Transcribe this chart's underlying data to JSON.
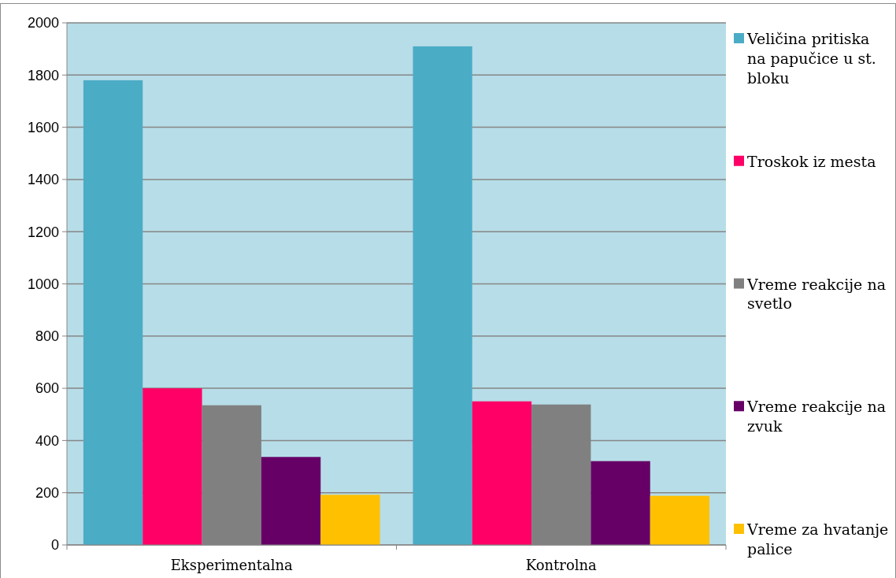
{
  "chart_data": {
    "type": "bar",
    "categories": [
      "Eksperimentalna",
      "Kontrolna"
    ],
    "series": [
      {
        "name": "Veličina pritiska na papučice u st. bloku",
        "color": "#4bacc6",
        "values": [
          1780,
          1910
        ]
      },
      {
        "name": "Troskok iz mesta",
        "color": "#ff0066",
        "values": [
          600,
          550
        ]
      },
      {
        "name": "Vreme reakcije na svetlo",
        "color": "#808080",
        "values": [
          535,
          538
        ]
      },
      {
        "name": "Vreme reakcije na zvuk",
        "color": "#660066",
        "values": [
          337,
          321
        ]
      },
      {
        "name": "Vreme za hvatanje palice",
        "color": "#ffc000",
        "values": [
          192,
          188
        ]
      }
    ],
    "ylim": [
      0,
      2000
    ],
    "yticks": [
      0,
      200,
      400,
      600,
      800,
      1000,
      1200,
      1400,
      1600,
      1800,
      2000
    ],
    "grid": "y",
    "legend": "right"
  }
}
